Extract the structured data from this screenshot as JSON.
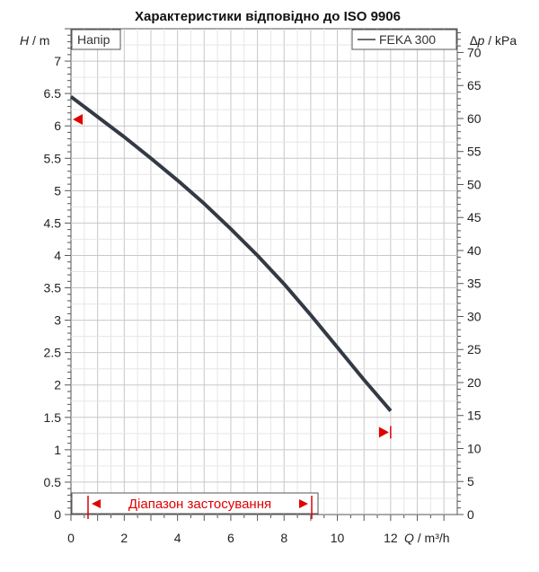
{
  "chart_data": {
    "type": "line",
    "title": "Характеристики відповідно до ISO 9906",
    "subtitle": "Напір",
    "left_axis": {
      "label_var": "H",
      "label_unit": " / m",
      "ylim": [
        0,
        7.5
      ],
      "ticks": [
        "0",
        "0.5",
        "1",
        "1.5",
        "2",
        "2.5",
        "3",
        "3.5",
        "4",
        "4.5",
        "5",
        "5.5",
        "6",
        "6.5",
        "7"
      ]
    },
    "right_axis": {
      "label_var": "∆p",
      "label_unit": " / kPa",
      "ylim": [
        0,
        73.6
      ],
      "ticks": [
        "0",
        "5",
        "10",
        "15",
        "20",
        "25",
        "30",
        "35",
        "40",
        "45",
        "50",
        "55",
        "60",
        "65",
        "70"
      ]
    },
    "x_axis": {
      "label_var": "Q",
      "label_unit": " / m³/h",
      "xlim": [
        0,
        14.5
      ],
      "ticks": [
        "0",
        "2",
        "4",
        "6",
        "8",
        "10",
        "12"
      ]
    },
    "series": [
      {
        "name": "FEKA 300",
        "color": "#333a45",
        "x": [
          0,
          1,
          2,
          3,
          4,
          5,
          6,
          7,
          8,
          9,
          10,
          11,
          12
        ],
        "y": [
          6.45,
          6.14,
          5.83,
          5.5,
          5.16,
          4.8,
          4.41,
          4.0,
          3.56,
          3.08,
          2.58,
          2.08,
          1.6
        ]
      }
    ],
    "markers": {
      "left_marker": {
        "x": 0,
        "y": 6.1
      },
      "right_marker": {
        "x": 12,
        "y": 1.27
      }
    },
    "application_range": {
      "label": "Діапазон застосування",
      "x_start": 0.5,
      "x_end": 9.5,
      "color": "#e10000"
    },
    "grid": true,
    "legend_position": "top-right"
  }
}
